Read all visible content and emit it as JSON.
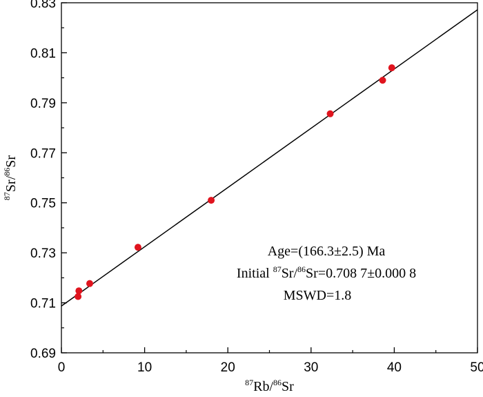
{
  "chart_data": {
    "type": "scatter",
    "xlabel": {
      "sup1": "87",
      "base1": "Rb/",
      "sup2": "86",
      "base2": "Sr"
    },
    "ylabel": {
      "sup1": "87",
      "base1": "Sr/",
      "sup2": "86",
      "base2": "Sr"
    },
    "xlim": [
      0,
      50
    ],
    "ylim": [
      0.69,
      0.83
    ],
    "xticks": [
      0,
      10,
      20,
      30,
      40,
      50
    ],
    "xtick_labels": [
      "0",
      "10",
      "20",
      "30",
      "40",
      "50"
    ],
    "yticks": [
      0.69,
      0.71,
      0.73,
      0.75,
      0.77,
      0.79,
      0.81,
      0.83
    ],
    "ytick_labels": [
      "0.69",
      "0.71",
      "0.73",
      "0.75",
      "0.77",
      "0.79",
      "0.81",
      "0.83"
    ],
    "grid": false,
    "points": [
      {
        "x": 2.0,
        "y": 0.7125
      },
      {
        "x": 2.1,
        "y": 0.7148
      },
      {
        "x": 3.4,
        "y": 0.7177
      },
      {
        "x": 9.2,
        "y": 0.7322
      },
      {
        "x": 18.0,
        "y": 0.751
      },
      {
        "x": 32.3,
        "y": 0.7856
      },
      {
        "x": 38.6,
        "y": 0.799
      },
      {
        "x": 39.7,
        "y": 0.804
      }
    ],
    "fit_line": {
      "intercept": 0.7087,
      "slope": 0.00237,
      "x_from": 0,
      "x_to": 50
    },
    "annotation": {
      "line1": "Age=(166.3±2.5) Ma",
      "line2_prefix": "Initial ",
      "line2_sup1": "87",
      "line2_mid": "Sr/",
      "line2_sup2": "86",
      "line2_suffix": "Sr=0.708 7±0.000 8",
      "line3": "MSWD=1.8"
    },
    "colors": {
      "points": "#e0141e",
      "line": "#000000",
      "axis": "#000000"
    }
  }
}
